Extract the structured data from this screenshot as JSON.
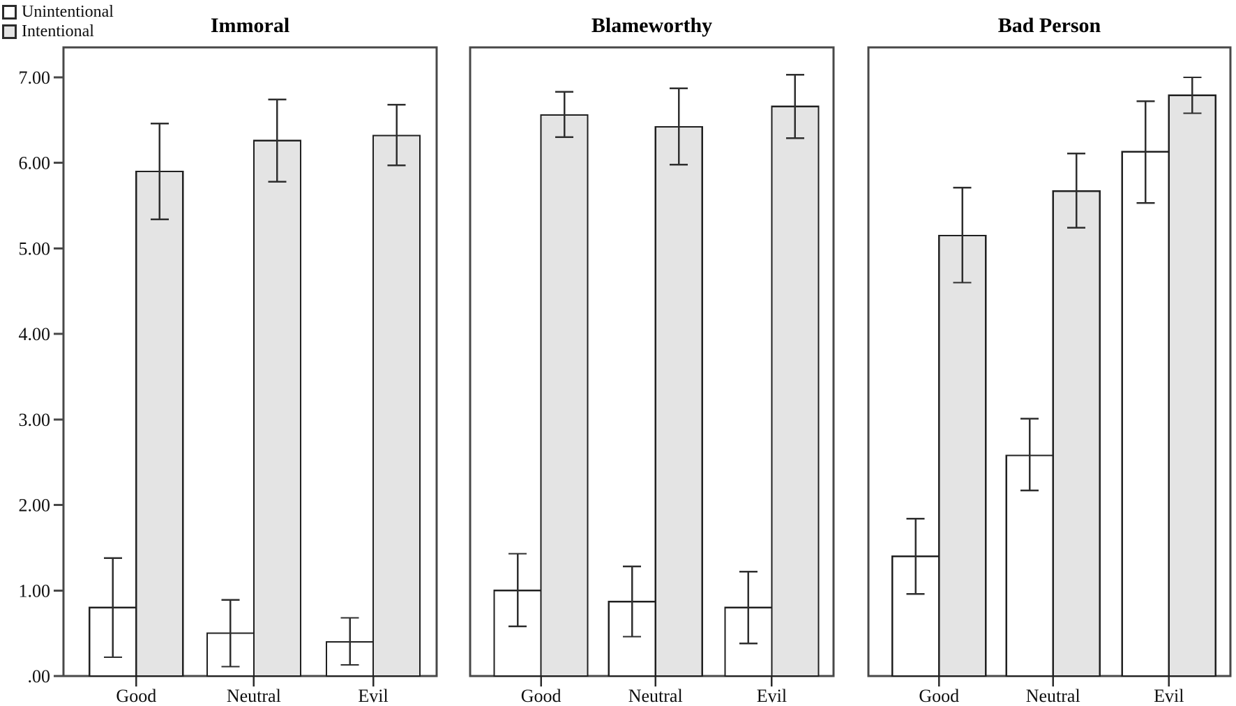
{
  "legend": {
    "items": [
      {
        "label": "Unintentional",
        "swatch_color": "#ffffff"
      },
      {
        "label": "Intentional",
        "swatch_color": "#e4e4e4"
      }
    ]
  },
  "chart_data": {
    "type": "bar",
    "categories": [
      "Good",
      "Neutral",
      "Evil"
    ],
    "series_names": [
      "Unintentional",
      "Intentional"
    ],
    "y_ticks": [
      0,
      1,
      2,
      3,
      4,
      5,
      6,
      7
    ],
    "y_tick_labels": [
      ".00",
      "1.00",
      "2.00",
      "3.00",
      "4.00",
      "5.00",
      "6.00",
      "7.00"
    ],
    "ylim": [
      0,
      7.35
    ],
    "grid": false,
    "legend_position": "top-left",
    "error_bars": true,
    "panels": [
      {
        "title": "Immoral",
        "series": [
          {
            "name": "Unintentional",
            "values": [
              0.8,
              0.5,
              0.4
            ],
            "ci_low": [
              0.22,
              0.11,
              0.13
            ],
            "ci_high": [
              1.38,
              0.89,
              0.68
            ]
          },
          {
            "name": "Intentional",
            "values": [
              5.9,
              6.26,
              6.32
            ],
            "ci_low": [
              5.34,
              5.78,
              5.97
            ],
            "ci_high": [
              6.46,
              6.74,
              6.68
            ]
          }
        ]
      },
      {
        "title": "Blameworthy",
        "series": [
          {
            "name": "Unintentional",
            "values": [
              1.0,
              0.87,
              0.8
            ],
            "ci_low": [
              0.58,
              0.46,
              0.38
            ],
            "ci_high": [
              1.43,
              1.28,
              1.22
            ]
          },
          {
            "name": "Intentional",
            "values": [
              6.56,
              6.42,
              6.66
            ],
            "ci_low": [
              6.3,
              5.98,
              6.29
            ],
            "ci_high": [
              6.83,
              6.87,
              7.03
            ]
          }
        ]
      },
      {
        "title": "Bad Person",
        "series": [
          {
            "name": "Unintentional",
            "values": [
              1.4,
              2.58,
              6.13
            ],
            "ci_low": [
              0.96,
              2.17,
              5.53
            ],
            "ci_high": [
              1.84,
              3.01,
              6.72
            ]
          },
          {
            "name": "Intentional",
            "values": [
              5.15,
              5.67,
              6.79
            ],
            "ci_low": [
              4.6,
              5.24,
              6.58
            ],
            "ci_high": [
              5.71,
              6.11,
              7.0
            ]
          }
        ]
      }
    ],
    "colors": {
      "unintentional_fill": "#ffffff",
      "intentional_fill": "#e4e4e4",
      "bar_border": "#202020",
      "error_bar": "#2e2e2e",
      "frame": "#484848",
      "text": "#0e0e0e"
    }
  }
}
